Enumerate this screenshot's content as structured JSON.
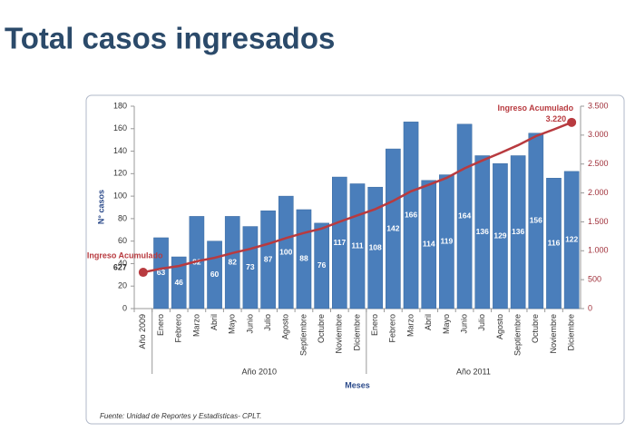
{
  "page_title": "Total casos ingresados",
  "chart_data": {
    "type": "bar",
    "categories": [
      "Año 2009",
      "Enero",
      "Febrero",
      "Marzo",
      "Abril",
      "Mayo",
      "Junio",
      "Julio",
      "Agosto",
      "Septiembre",
      "Octubre",
      "Noviembre",
      "Diciembre",
      "Enero",
      "Febrero",
      "Marzo",
      "Abril",
      "Mayo",
      "Junio",
      "Julio",
      "Agosto",
      "Septiembre",
      "Octubre",
      "Noviembre",
      "Diciembre"
    ],
    "x_groups": [
      "Año 2010",
      "Año 2011"
    ],
    "x_label": "Meses",
    "y_label": "N° casos",
    "series": [
      {
        "type": "bar",
        "color": "#4a7ebb",
        "values": [
          null,
          63,
          46,
          82,
          60,
          82,
          73,
          87,
          100,
          88,
          76,
          117,
          111,
          108,
          142,
          166,
          114,
          119,
          164,
          136,
          129,
          136,
          156,
          116,
          122
        ]
      },
      {
        "type": "line",
        "name": "Ingreso Acumulado",
        "axis": "y2",
        "color": "#b83a3f",
        "values": [
          627,
          690,
          736,
          818,
          878,
          960,
          1033,
          1120,
          1220,
          1308,
          1384,
          1501,
          1612,
          1720,
          1862,
          2028,
          2142,
          2261,
          2425,
          2561,
          2690,
          2826,
          2982,
          3098,
          3220
        ],
        "value_labels": [
          "627",
          null,
          null,
          null,
          null,
          null,
          null,
          null,
          null,
          null,
          null,
          null,
          null,
          null,
          null,
          null,
          null,
          null,
          null,
          null,
          null,
          null,
          null,
          null,
          "3.220"
        ]
      }
    ],
    "ylim": [
      0,
      180
    ],
    "yticks": [
      0,
      20,
      40,
      60,
      80,
      100,
      120,
      140,
      160,
      180
    ],
    "y2lim": [
      0,
      3500
    ],
    "y2ticks": [
      0,
      500,
      {
        "value": 1000,
        "label": "1.000"
      },
      {
        "value": 1500,
        "label": "1.500"
      },
      {
        "value": 2000,
        "label": "2.000"
      },
      {
        "value": 2500,
        "label": "2.500"
      },
      {
        "value": 3000,
        "label": "3.000"
      },
      {
        "value": 3500,
        "label": "3.500"
      }
    ],
    "source": "Fuente: Unidad de Reportes y Estadísticas- CPLT."
  }
}
